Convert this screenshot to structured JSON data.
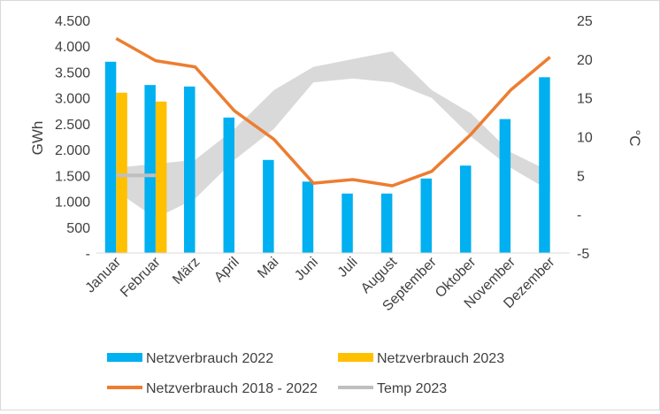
{
  "chart_data": {
    "type": "bar",
    "categories": [
      "Januar",
      "Februar",
      "März",
      "April",
      "Mai",
      "Juni",
      "Juli",
      "August",
      "September",
      "Oktober",
      "November",
      "Dezember"
    ],
    "ylabel": "GWh",
    "y2label": "°C",
    "ylim": [
      0,
      4500
    ],
    "y2lim": [
      -5,
      25
    ],
    "y_ticks": [
      "-",
      "500",
      "1.000",
      "1.500",
      "2.000",
      "2.500",
      "3.000",
      "3.500",
      "4.000",
      "4.500"
    ],
    "y2_ticks": [
      "-5",
      "-",
      "5",
      "10",
      "15",
      "20",
      "25"
    ],
    "grid": false,
    "legend_position": "bottom",
    "series": [
      {
        "name": "Netzverbrauch 2022",
        "type": "bar",
        "axis": "left",
        "color": "#00b0f0",
        "values": [
          3700,
          3250,
          3220,
          2620,
          1800,
          1380,
          1150,
          1150,
          1440,
          1690,
          2590,
          3400
        ]
      },
      {
        "name": "Netzverbrauch 2023",
        "type": "bar",
        "axis": "left",
        "color": "#ffc000",
        "values": [
          3100,
          2930,
          null,
          null,
          null,
          null,
          null,
          null,
          null,
          null,
          null,
          null
        ]
      },
      {
        "name": "Netzverbrauch 2018 - 2022",
        "type": "line",
        "axis": "left",
        "color": "#ed7d31",
        "values": [
          4150,
          3720,
          3600,
          2750,
          2200,
          1350,
          1420,
          1300,
          1580,
          2300,
          3150,
          3790
        ]
      },
      {
        "name": "Temp 2023",
        "type": "line",
        "axis": "right",
        "color": "#bfbfbf",
        "values": [
          5,
          5,
          null,
          null,
          null,
          null,
          null,
          null,
          null,
          null,
          null,
          null
        ]
      }
    ],
    "band": {
      "axis": "right",
      "color": "#d9d9d9",
      "upper": [
        6,
        6.5,
        7,
        11,
        16,
        19,
        20,
        21,
        16,
        13,
        8,
        5.5
      ],
      "lower": [
        3,
        -0.5,
        2,
        7,
        11,
        17,
        17.5,
        17,
        15,
        10,
        6,
        3
      ]
    }
  }
}
